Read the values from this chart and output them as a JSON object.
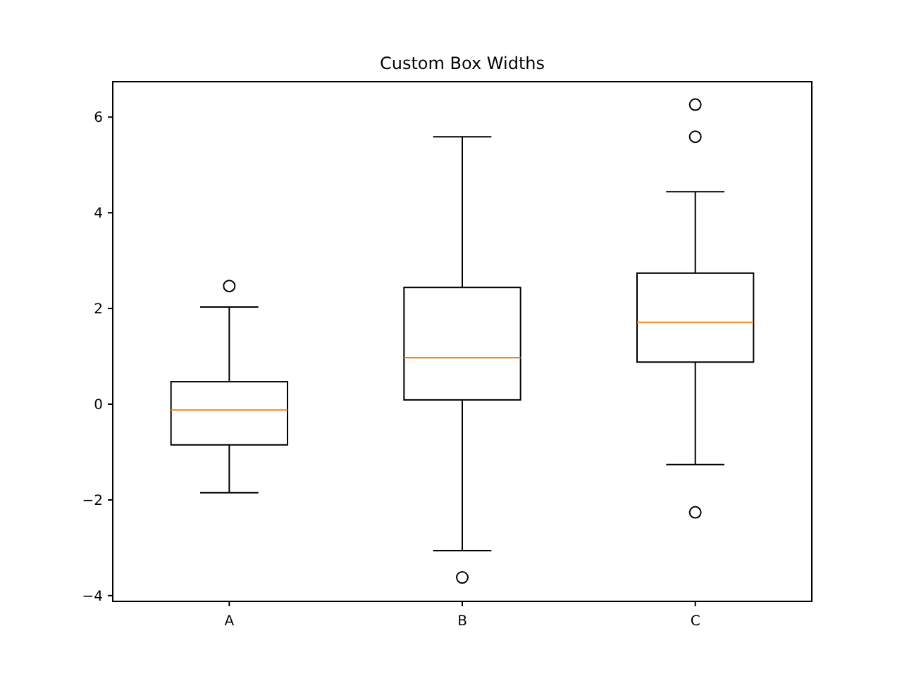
{
  "chart_data": {
    "type": "box",
    "title": "Custom Box Widths",
    "categories": [
      "A",
      "B",
      "C"
    ],
    "boxes": [
      {
        "low": -1.85,
        "q1": -0.85,
        "median": -0.12,
        "q3": 0.47,
        "high": 2.03,
        "outliers": [
          2.47
        ]
      },
      {
        "low": -3.06,
        "q1": 0.09,
        "median": 0.97,
        "q3": 2.44,
        "high": 5.59,
        "outliers": [
          -3.62
        ]
      },
      {
        "low": -1.26,
        "q1": 0.88,
        "median": 1.71,
        "q3": 2.74,
        "high": 4.44,
        "outliers": [
          6.26,
          5.59,
          -2.26
        ]
      }
    ],
    "color": "#000000",
    "ylim": [
      -4.12,
      6.74
    ],
    "yticks": [
      -4,
      -2,
      0,
      2,
      4,
      6
    ],
    "grid": false
  }
}
